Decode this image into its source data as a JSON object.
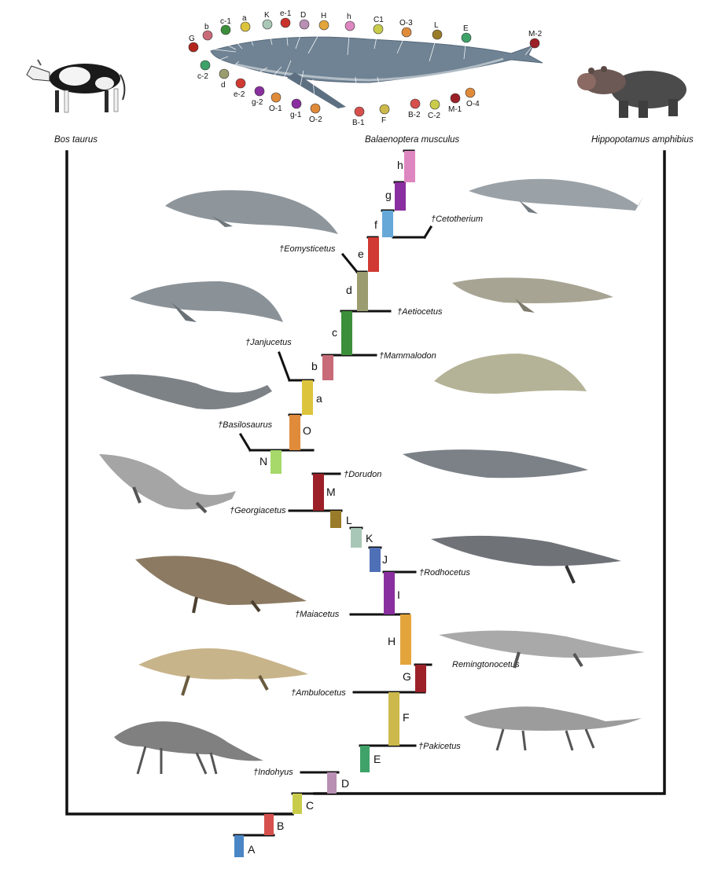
{
  "top_species": [
    {
      "name": "Bos taurus"
    },
    {
      "name": "Balaenoptera musculus"
    },
    {
      "name": "Hippopotamus amphibius"
    }
  ],
  "steps": [
    {
      "label": "A",
      "color": "#4a86c6"
    },
    {
      "label": "B",
      "color": "#d6504d"
    },
    {
      "label": "C",
      "color": "#c9cc4a"
    },
    {
      "label": "D",
      "color": "#b98fb3"
    },
    {
      "label": "E",
      "color": "#3fa268"
    },
    {
      "label": "F",
      "color": "#cdb94b"
    },
    {
      "label": "G",
      "color": "#9c2027"
    },
    {
      "label": "H",
      "color": "#e3a53b"
    },
    {
      "label": "I",
      "color": "#8a2f9f"
    },
    {
      "label": "J",
      "color": "#4f6fb6"
    },
    {
      "label": "K",
      "color": "#a9c7b6"
    },
    {
      "label": "L",
      "color": "#9a7b2a"
    },
    {
      "label": "M",
      "color": "#9c2027"
    },
    {
      "label": "N",
      "color": "#a6d86a"
    },
    {
      "label": "O",
      "color": "#e08b3a"
    },
    {
      "label": "a",
      "color": "#dcc43d"
    },
    {
      "label": "b",
      "color": "#c96a78"
    },
    {
      "label": "c",
      "color": "#3c8f3a"
    },
    {
      "label": "d",
      "color": "#9b9d70"
    },
    {
      "label": "e",
      "color": "#d03a33"
    },
    {
      "label": "f",
      "color": "#66a8d8"
    },
    {
      "label": "g",
      "color": "#8a2f9f"
    },
    {
      "label": "h",
      "color": "#de86bf"
    }
  ],
  "fossils": [
    {
      "name": "†Indohyus"
    },
    {
      "name": "†Pakicetus"
    },
    {
      "name": "†Ambulocetus"
    },
    {
      "name": "Remingtonocetus"
    },
    {
      "name": "†Maiacetus"
    },
    {
      "name": "†Rodhocetus"
    },
    {
      "name": "†Georgiacetus"
    },
    {
      "name": "†Dorudon"
    },
    {
      "name": "†Basilosaurus"
    },
    {
      "name": "†Janjucetus"
    },
    {
      "name": "†Mammalodon"
    },
    {
      "name": "†Aetiocetus"
    },
    {
      "name": "†Eomysticetus"
    },
    {
      "name": "†Cetotherium"
    }
  ],
  "whale_markers": [
    {
      "label": "G",
      "color": "#b3261e"
    },
    {
      "label": "b",
      "color": "#c96a78"
    },
    {
      "label": "c-1",
      "color": "#3c8f3a"
    },
    {
      "label": "a",
      "color": "#dcc43d"
    },
    {
      "label": "K",
      "color": "#a9c7b6"
    },
    {
      "label": "e-1",
      "color": "#c9322b"
    },
    {
      "label": "D",
      "color": "#b98fb3"
    },
    {
      "label": "H",
      "color": "#e3a53b"
    },
    {
      "label": "h",
      "color": "#de86bf"
    },
    {
      "label": "C1",
      "color": "#c9cc4a"
    },
    {
      "label": "O-3",
      "color": "#e08b3a"
    },
    {
      "label": "L",
      "color": "#9a7b2a"
    },
    {
      "label": "E",
      "color": "#3fa268"
    },
    {
      "label": "M-2",
      "color": "#9c2027"
    },
    {
      "label": "c-2",
      "color": "#3fa268"
    },
    {
      "label": "d",
      "color": "#9b9d70"
    },
    {
      "label": "e-2",
      "color": "#d03a33"
    },
    {
      "label": "g-2",
      "color": "#8a2f9f"
    },
    {
      "label": "O-1",
      "color": "#e08b3a"
    },
    {
      "label": "g-1",
      "color": "#8a2f9f"
    },
    {
      "label": "O-2",
      "color": "#e08b3a"
    },
    {
      "label": "B-1",
      "color": "#d6504d"
    },
    {
      "label": "F",
      "color": "#cdb94b"
    },
    {
      "label": "B-2",
      "color": "#d6504d"
    },
    {
      "label": "C-2",
      "color": "#c9cc4a"
    },
    {
      "label": "M-1",
      "color": "#9c2027"
    },
    {
      "label": "O-4",
      "color": "#e08b3a"
    }
  ],
  "colors": {
    "line": "#111111",
    "whale_body": "#6f8394",
    "animal": "#8a8a8a"
  }
}
